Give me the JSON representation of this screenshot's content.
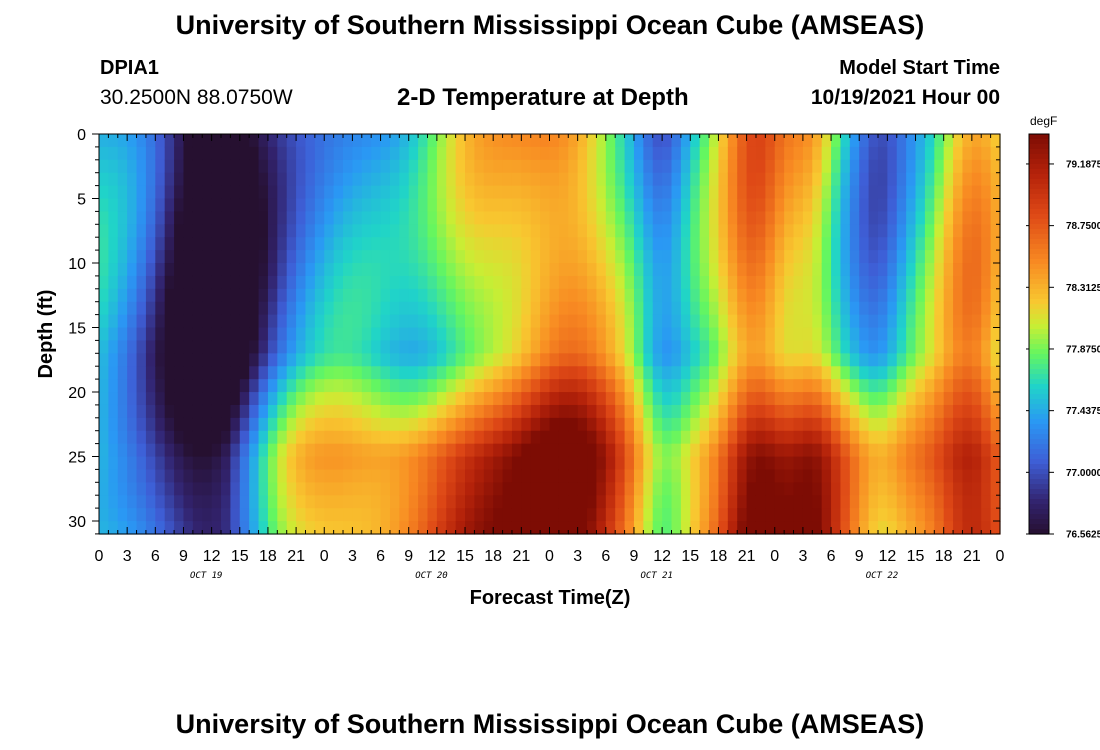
{
  "header": {
    "title": "University of Southern Mississippi Ocean Cube (AMSEAS)",
    "station": "DPIA1",
    "coordinates": "30.2500N  88.0750W",
    "subtitle": "2-D Temperature at Depth",
    "model_start_label": "Model Start Time",
    "model_start_value": "10/19/2021 Hour 00"
  },
  "footer": {
    "title": "University of Southern Mississippi Ocean Cube (AMSEAS)"
  },
  "chart_data": {
    "type": "heatmap",
    "xlabel": "Forecast Time(Z)",
    "ylabel": "Depth (ft)",
    "x_hours_range": [
      0,
      96
    ],
    "x_tick_labels": [
      "0",
      "3",
      "6",
      "9",
      "12",
      "15",
      "18",
      "21",
      "0",
      "3",
      "6",
      "9",
      "12",
      "15",
      "18",
      "21",
      "0",
      "3",
      "6",
      "9",
      "12",
      "15",
      "18",
      "21",
      "0",
      "3",
      "6",
      "9",
      "12",
      "15",
      "18",
      "21",
      "0"
    ],
    "day_labels": [
      {
        "label": "OCT 19",
        "hour": 11
      },
      {
        "label": "OCT 20",
        "hour": 35
      },
      {
        "label": "OCT 21",
        "hour": 59
      },
      {
        "label": "OCT 22",
        "hour": 83
      }
    ],
    "y_range": [
      0,
      31
    ],
    "y_ticks": [
      0,
      5,
      10,
      15,
      20,
      25,
      30
    ],
    "colorbar": {
      "unit": "degF",
      "min": 76.5625,
      "max": 79.4,
      "labels": [
        "79.1875",
        "78.7500",
        "78.3125",
        "77.8750",
        "77.4375",
        "77.0000",
        "76.5625"
      ]
    }
  }
}
